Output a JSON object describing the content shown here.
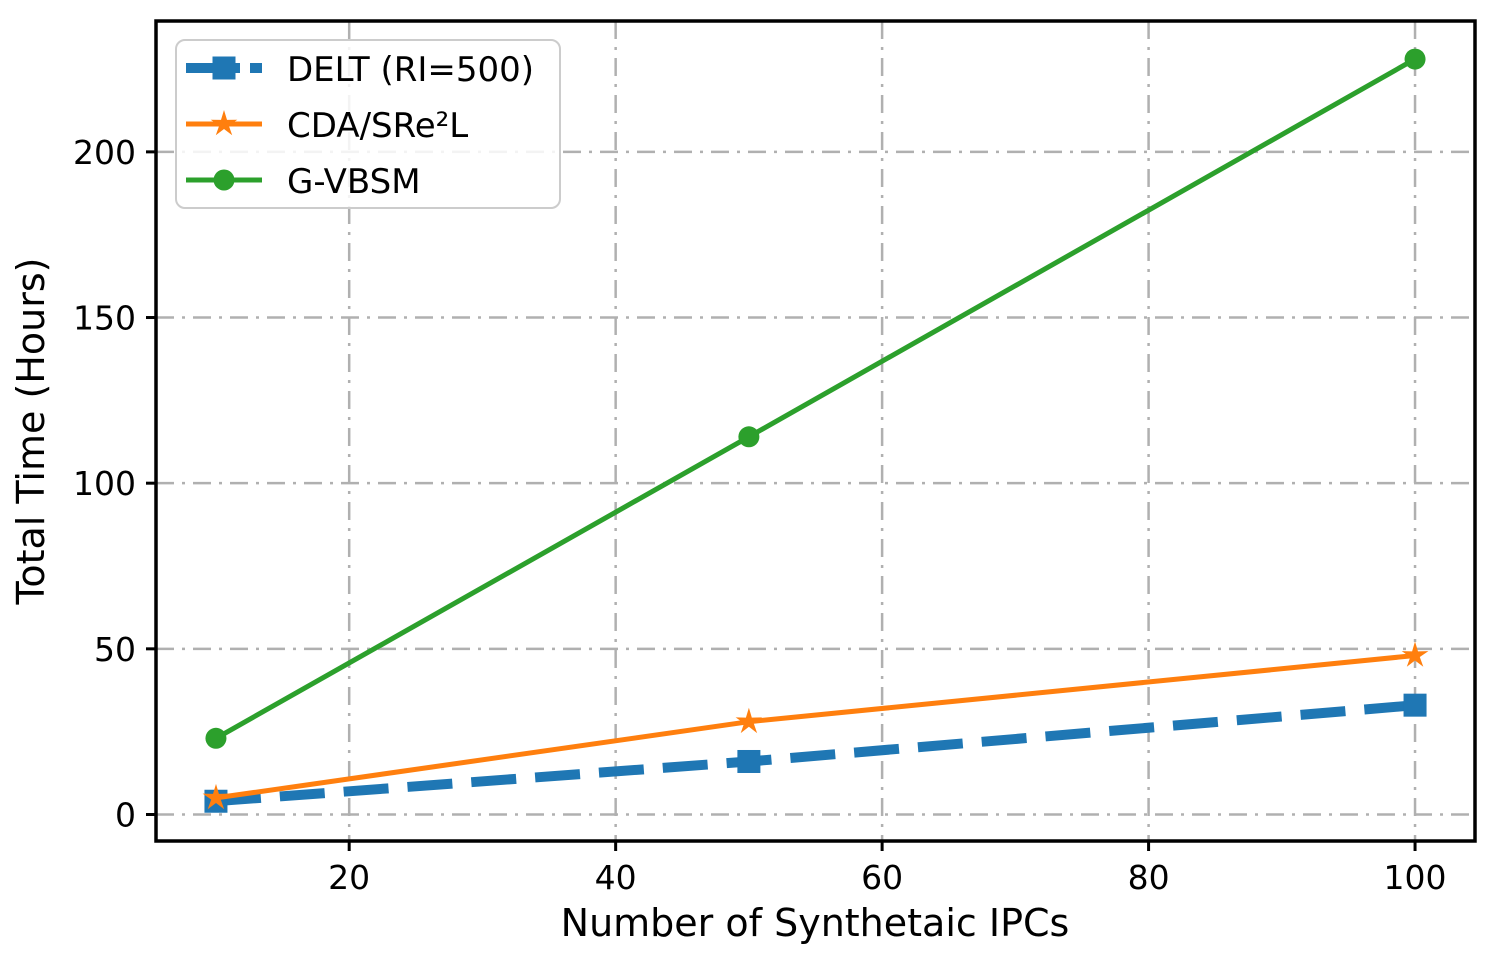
{
  "chart_data": {
    "type": "line",
    "title": "",
    "xlabel": "Number of Synthetaic IPCs",
    "ylabel": "Total Time (Hours)",
    "xlim": [
      5.5,
      104.5
    ],
    "ylim": [
      -8,
      239.5
    ],
    "xticks": [
      20,
      40,
      60,
      80,
      100
    ],
    "yticks": [
      0,
      50,
      100,
      150,
      200
    ],
    "grid": true,
    "grid_color": "#b0b0b0",
    "grid_style": "dash-dot",
    "background_color": "#ffffff",
    "legend_position": "upper-left",
    "x": [
      10,
      50,
      100
    ],
    "series": [
      {
        "name": "DELT (RI=500)",
        "values": [
          4,
          16,
          33
        ],
        "color": "#1f77b4",
        "line_style": "dashed",
        "line_width": 10,
        "marker": "square",
        "marker_size": 23
      },
      {
        "name": "CDA/SRe²L",
        "values": [
          5,
          28,
          48
        ],
        "color": "#ff7f0e",
        "line_style": "solid",
        "line_width": 5,
        "marker": "star",
        "marker_size": 24
      },
      {
        "name": "G-VBSM",
        "values": [
          23,
          114,
          228
        ],
        "color": "#2ca02c",
        "line_style": "solid",
        "line_width": 5,
        "marker": "circle",
        "marker_size": 21
      }
    ]
  }
}
